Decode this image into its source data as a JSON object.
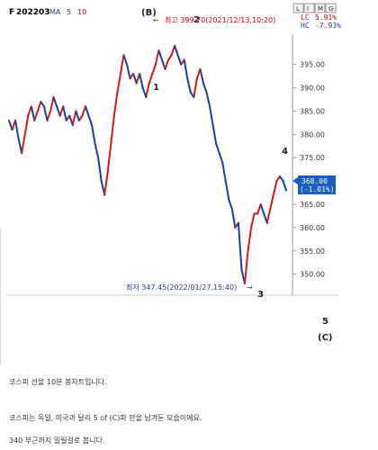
{
  "header": {
    "symbol_prefix": "F",
    "symbol": "202203",
    "ma_label": "MA",
    "ma1": "5",
    "ma2": "10",
    "toolbar_buttons": [
      "L",
      "I",
      "M",
      "G"
    ],
    "lc_label": "LC",
    "lc_value": "5.91%",
    "hc_label": "HC",
    "hc_value": "-7.93%"
  },
  "annotations": {
    "high": "최고 399.70(2021/12/13,10:20)",
    "low": "최저 347.45(2022/01/27,15:40)",
    "price_box_value": "368.00",
    "price_box_change": "(-1.01%)",
    "waves": {
      "b": "(B)",
      "w1": "1",
      "w2": "2",
      "w3": "3",
      "w4": "4",
      "w5": "5",
      "c": "(C)"
    }
  },
  "chart_data": {
    "type": "line",
    "title": "",
    "y_ticks": [
      350.0,
      355.0,
      360.0,
      365.0,
      370.0,
      375.0,
      380.0,
      385.0,
      390.0,
      395.0
    ],
    "y_tick_labels": [
      "350.00",
      "355.00",
      "360.00",
      "365.00",
      "370.00",
      "375.00",
      "380.00",
      "385.00",
      "390.00",
      "395.00"
    ],
    "ylim": [
      345.5,
      401.5
    ],
    "grid": false,
    "series": [
      {
        "values": [
          383,
          381,
          383,
          379,
          376,
          380,
          384,
          386,
          383,
          385,
          387,
          386,
          383,
          385,
          388,
          386,
          384,
          386,
          383,
          384,
          382,
          385,
          383,
          384,
          386,
          384,
          382,
          378,
          375,
          370,
          367,
          372,
          378,
          384,
          389,
          393,
          397,
          395,
          392,
          393,
          391,
          393,
          390,
          388,
          391,
          393,
          395,
          398,
          396,
          394,
          396,
          397,
          399,
          397,
          395,
          396,
          392,
          389,
          388,
          392,
          394,
          391,
          389,
          386,
          382,
          378,
          376,
          374,
          370,
          366,
          364,
          360,
          361,
          351,
          348,
          355,
          360,
          363,
          363,
          365,
          363,
          361,
          364,
          367,
          370,
          371,
          370,
          368
        ]
      }
    ]
  },
  "post": {
    "line1": "코스피 선을 10분 봉차트입니다.",
    "line2": "코스피는 독일, 미국과 달리 5 of (C)파 만을 남겨둔 모습이에요.",
    "line3": "340 부근까지 밀릴걸로 봅니다."
  }
}
